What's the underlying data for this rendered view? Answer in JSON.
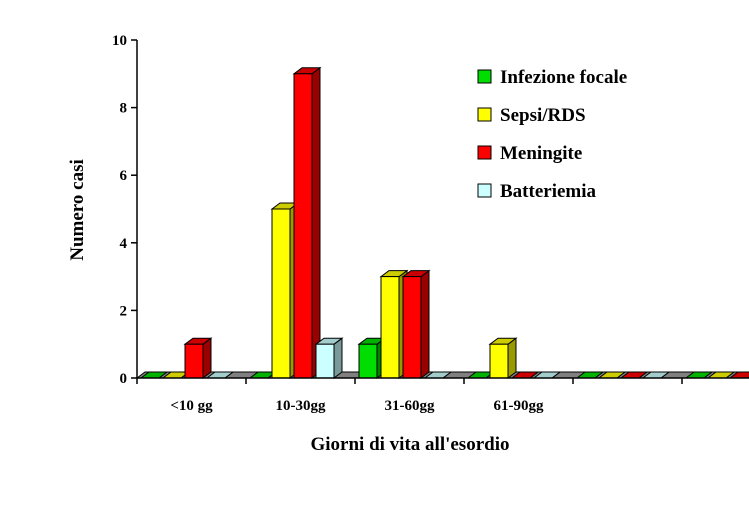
{
  "chart_data": {
    "type": "bar",
    "title": "",
    "xlabel": "Giorni di vita all'esordio",
    "ylabel": "Numero casi",
    "categories": [
      "<10 gg",
      "10-30gg",
      "31-60gg",
      "61-90gg",
      "",
      ""
    ],
    "series": [
      {
        "name": "Infezione focale",
        "color": "#00dd00",
        "values": [
          0,
          0,
          1,
          0,
          0,
          0
        ]
      },
      {
        "name": "Sepsi/RDS",
        "color": "#ffff00",
        "values": [
          0,
          5,
          3,
          1,
          0,
          0
        ]
      },
      {
        "name": "Meningite",
        "color": "#ff0000",
        "values": [
          1,
          9,
          3,
          0,
          0,
          0
        ]
      },
      {
        "name": "Batteriemia",
        "color": "#ccffff",
        "values": [
          0,
          1,
          0,
          0,
          0,
          0
        ]
      }
    ],
    "yticks": [
      0,
      2,
      4,
      6,
      8,
      10
    ],
    "ylim": [
      0,
      10
    ],
    "grid": false,
    "legend": "top-right",
    "style": "3d-clustered-column"
  }
}
